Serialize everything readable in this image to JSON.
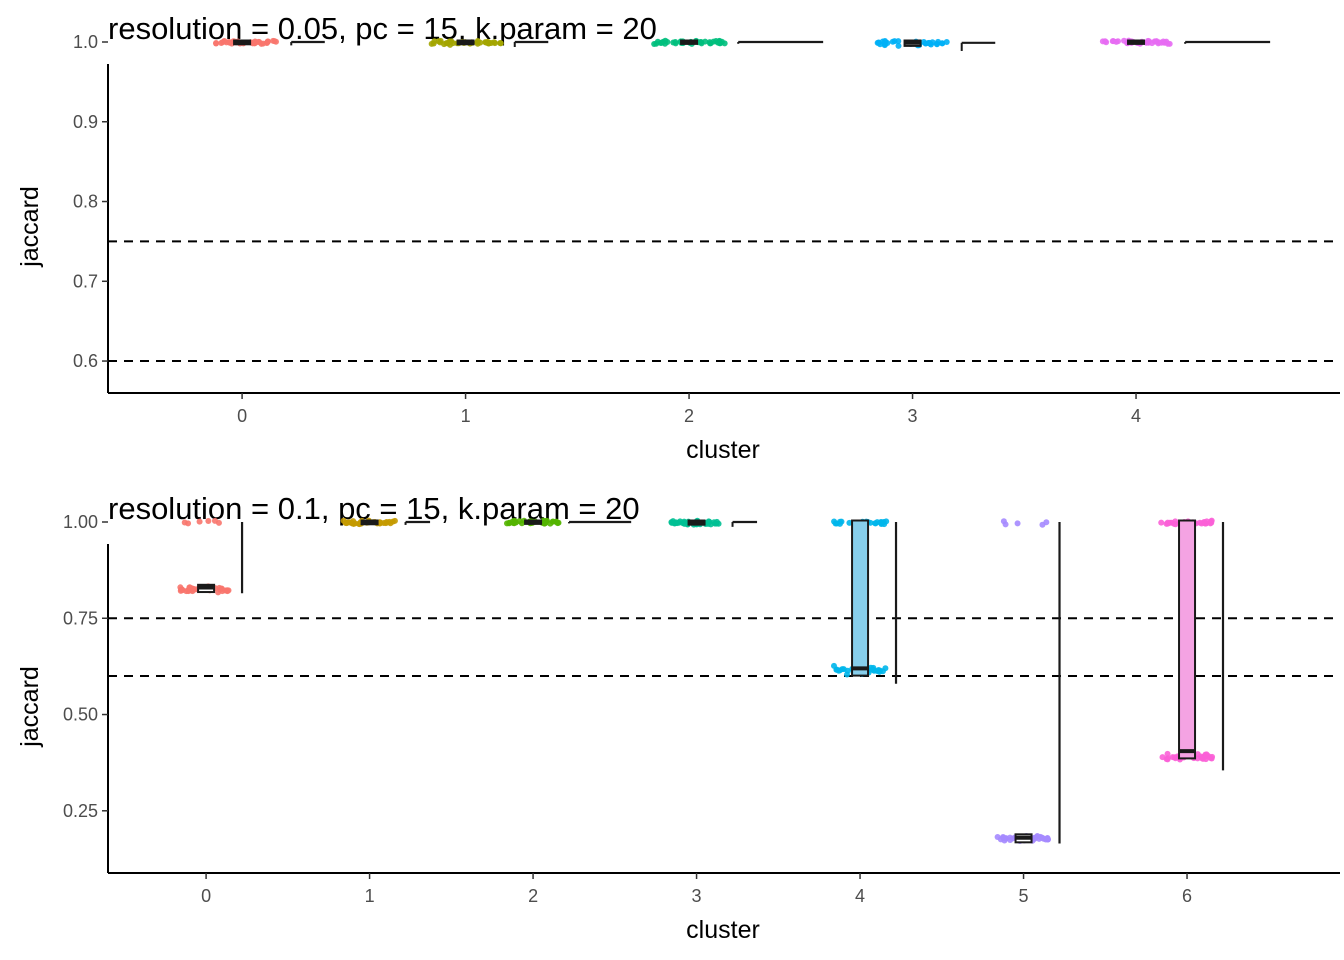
{
  "chart_data": [
    {
      "type": "raincloud",
      "title": "resolution = 0.05, pc = 15, k.param = 20",
      "xlabel": "cluster",
      "ylabel": "jaccard",
      "categories": [
        "0",
        "1",
        "2",
        "3",
        "4"
      ],
      "ylim": [
        0.58,
        1.0
      ],
      "yticks": [
        0.6,
        0.7,
        0.8,
        0.9,
        1.0
      ],
      "ytick_labels": [
        "0.6",
        "0.7",
        "0.8",
        "0.9",
        "1.0"
      ],
      "reference_lines": [
        0.75,
        0.6
      ],
      "grid": false,
      "colors": [
        "#F8766D",
        "#A3A500",
        "#00BF7D",
        "#00B0F6",
        "#E76BF3"
      ],
      "box_fill": "#ffffff",
      "series": [
        {
          "cluster": "0",
          "median": 1.0,
          "q1": 0.999,
          "q3": 1.0,
          "min": 0.997,
          "max": 1.0,
          "spread": 0.002
        },
        {
          "cluster": "1",
          "median": 1.0,
          "q1": 0.999,
          "q3": 1.0,
          "min": 0.995,
          "max": 1.0,
          "spread": 0.003
        },
        {
          "cluster": "2",
          "median": 1.0,
          "q1": 0.9995,
          "q3": 1.0,
          "min": 0.999,
          "max": 1.0,
          "spread": 0.001
        },
        {
          "cluster": "3",
          "median": 0.999,
          "q1": 0.997,
          "q3": 1.0,
          "min": 0.99,
          "max": 1.0,
          "spread": 0.004
        },
        {
          "cluster": "4",
          "median": 1.0,
          "q1": 0.9995,
          "q3": 1.0,
          "min": 0.999,
          "max": 1.0,
          "spread": 0.001
        }
      ]
    },
    {
      "type": "raincloud",
      "title": "resolution = 0.1, pc = 15, k.param = 20",
      "xlabel": "cluster",
      "ylabel": "jaccard",
      "categories": [
        "0",
        "1",
        "2",
        "3",
        "4",
        "5",
        "6"
      ],
      "ylim": [
        0.13,
        1.0
      ],
      "yticks": [
        0.25,
        0.5,
        0.75,
        1.0
      ],
      "ytick_labels": [
        "0.25",
        "0.50",
        "0.75",
        "1.00"
      ],
      "reference_lines": [
        0.75,
        0.6
      ],
      "grid": false,
      "colors": [
        "#F8766D",
        "#C49A00",
        "#53B400",
        "#00C094",
        "#00B6EB",
        "#A58AFF",
        "#FB61D7"
      ],
      "box_fill": "#ffffff",
      "series": [
        {
          "cluster": "0",
          "median": 0.83,
          "q1": 0.822,
          "q3": 0.833,
          "min": 0.815,
          "max": 1.0,
          "clusters": [
            {
              "v": 0.825,
              "n": 40,
              "sd": 0.006
            },
            {
              "v": 1.0,
              "n": 6,
              "sd": 0.001
            }
          ]
        },
        {
          "cluster": "1",
          "median": 1.0,
          "q1": 0.998,
          "q3": 1.0,
          "min": 0.995,
          "max": 1.0,
          "clusters": [
            {
              "v": 0.999,
              "n": 40,
              "sd": 0.002
            }
          ]
        },
        {
          "cluster": "2",
          "median": 1.0,
          "q1": 0.999,
          "q3": 1.0,
          "min": 0.999,
          "max": 1.0,
          "clusters": [
            {
              "v": 1.0,
              "n": 40,
              "sd": 0.001
            }
          ]
        },
        {
          "cluster": "3",
          "median": 1.0,
          "q1": 0.997,
          "q3": 1.0,
          "min": 0.99,
          "max": 1.0,
          "clusters": [
            {
              "v": 0.998,
              "n": 40,
              "sd": 0.003
            }
          ]
        },
        {
          "cluster": "4",
          "median": 0.62,
          "q1": 0.605,
          "q3": 1.0,
          "min": 0.58,
          "max": 1.0,
          "fill": "#87CEEB",
          "clusters": [
            {
              "v": 0.615,
              "n": 35,
              "sd": 0.012
            },
            {
              "v": 0.998,
              "n": 25,
              "sd": 0.002
            }
          ]
        },
        {
          "cluster": "5",
          "median": 0.18,
          "q1": 0.172,
          "q3": 0.185,
          "min": 0.165,
          "max": 1.0,
          "clusters": [
            {
              "v": 0.178,
              "n": 40,
              "sd": 0.006
            },
            {
              "v": 0.997,
              "n": 5,
              "sd": 0.004
            }
          ]
        },
        {
          "cluster": "6",
          "median": 0.405,
          "q1": 0.39,
          "q3": 1.0,
          "min": 0.355,
          "max": 1.0,
          "fill": "#F4A3E3",
          "clusters": [
            {
              "v": 0.39,
              "n": 40,
              "sd": 0.012
            },
            {
              "v": 0.998,
              "n": 30,
              "sd": 0.002
            }
          ]
        }
      ]
    }
  ]
}
